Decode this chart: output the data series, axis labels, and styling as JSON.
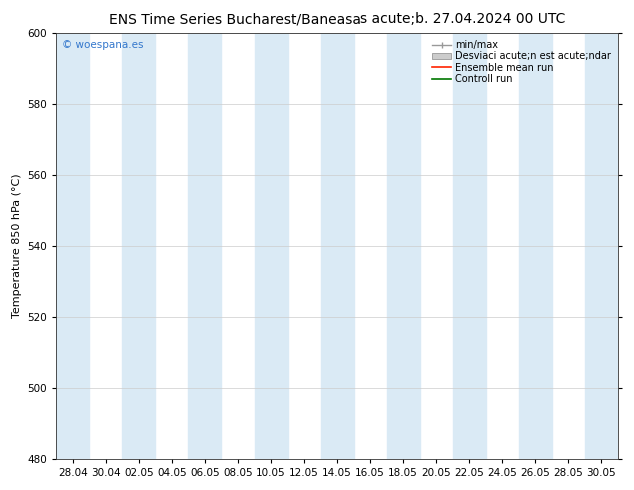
{
  "title_left": "ENS Time Series Bucharest/Baneasa",
  "title_right": "s acute;b. 27.04.2024 00 UTC",
  "ylabel": "Temperature 850 hPa (°C)",
  "ylim": [
    480,
    600
  ],
  "yticks": [
    480,
    500,
    520,
    540,
    560,
    580,
    600
  ],
  "x_labels": [
    "28.04",
    "30.04",
    "02.05",
    "04.05",
    "06.05",
    "08.05",
    "10.05",
    "12.05",
    "14.05",
    "16.05",
    "18.05",
    "20.05",
    "22.05",
    "24.05",
    "26.05",
    "28.05",
    "30.05"
  ],
  "n_ticks": 17,
  "shade_color": "#daeaf5",
  "background_color": "#ffffff",
  "plot_bg_color": "#ffffff",
  "watermark": "© woespana.es",
  "watermark_color": "#3377cc",
  "legend_labels": [
    "min/max",
    "Desviaci acute;n est acute;ndar",
    "Ensemble mean run",
    "Controll run"
  ],
  "legend_colors": [
    "#999999",
    "#cccccc",
    "#ff2200",
    "#007700"
  ],
  "grid_color": "#cccccc",
  "title_fontsize": 10,
  "axis_fontsize": 8,
  "tick_fontsize": 7.5,
  "figsize": [
    6.34,
    4.9
  ],
  "dpi": 100
}
